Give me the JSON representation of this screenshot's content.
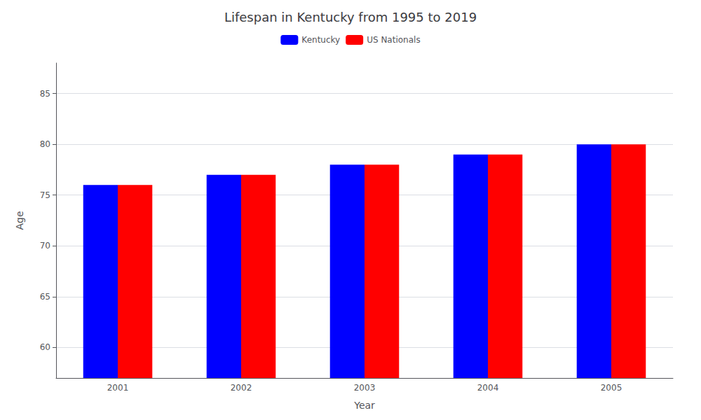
{
  "chart_data": {
    "type": "bar",
    "title": "Lifespan in Kentucky from 1995 to 2019",
    "xlabel": "Year",
    "ylabel": "Age",
    "categories": [
      "2001",
      "2002",
      "2003",
      "2004",
      "2005"
    ],
    "series": [
      {
        "name": "Kentucky",
        "color": "#0000ff",
        "values": [
          76.0,
          77.0,
          78.0,
          79.0,
          80.0
        ]
      },
      {
        "name": "US Nationals",
        "color": "#ff0000",
        "values": [
          76.0,
          77.0,
          78.0,
          79.0,
          80.0
        ]
      }
    ],
    "ylim": [
      57,
      88
    ],
    "yticks": [
      60,
      65,
      70,
      75,
      80,
      85
    ],
    "grid": true,
    "legend": "top"
  }
}
